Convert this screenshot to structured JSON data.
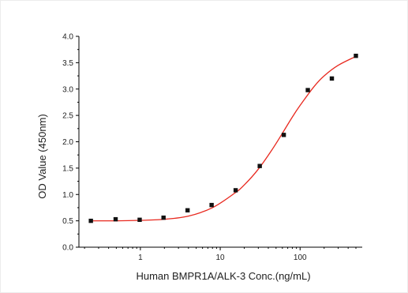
{
  "chart_data": {
    "type": "scatter",
    "title": "",
    "xlabel": "Human BMPR1A/ALK-3 Conc.(ng/mL)",
    "ylabel": "OD Value (450nm)",
    "x_scale": "log",
    "xlim": [
      0.17,
      600
    ],
    "ylim": [
      0,
      4
    ],
    "x_ticks": [
      {
        "value": 1,
        "label": "1"
      },
      {
        "value": 10,
        "label": "10"
      },
      {
        "value": 100,
        "label": "100"
      }
    ],
    "y_ticks": [
      {
        "value": 0,
        "label": "0.0"
      },
      {
        "value": 0.5,
        "label": "0.5"
      },
      {
        "value": 1,
        "label": "1.0"
      },
      {
        "value": 1.5,
        "label": "1.5"
      },
      {
        "value": 2,
        "label": "2.0"
      },
      {
        "value": 2.5,
        "label": "2.5"
      },
      {
        "value": 3,
        "label": "3.0"
      },
      {
        "value": 3.5,
        "label": "3.5"
      },
      {
        "value": 4,
        "label": "4.0"
      }
    ],
    "grid": false,
    "legend": "none",
    "series": [
      {
        "type": "scatter",
        "color": "#111111",
        "marker": "square",
        "x": [
          0.24,
          0.49,
          0.98,
          1.95,
          3.9,
          7.8,
          15.6,
          31.25,
          62.5,
          125,
          250,
          500
        ],
        "y": [
          0.5,
          0.53,
          0.52,
          0.56,
          0.7,
          0.8,
          1.08,
          1.54,
          2.13,
          2.98,
          3.2,
          3.63
        ]
      },
      {
        "type": "line",
        "color": "#e8281e",
        "fit": "4PL",
        "x": [
          0.24,
          0.5,
          1,
          2,
          4,
          8,
          15,
          20,
          30,
          45,
          60,
          80,
          100,
          150,
          200,
          300,
          500
        ],
        "y": [
          0.5,
          0.5,
          0.51,
          0.53,
          0.59,
          0.75,
          1.02,
          1.18,
          1.48,
          1.86,
          2.16,
          2.47,
          2.69,
          3.05,
          3.25,
          3.45,
          3.62
        ]
      }
    ]
  }
}
